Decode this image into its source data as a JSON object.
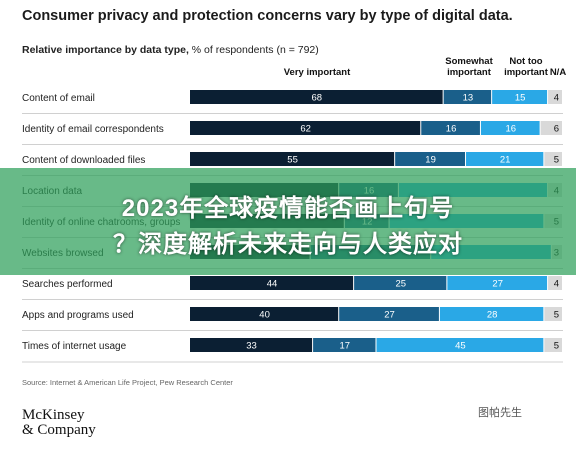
{
  "header": {
    "title": "Consumer privacy and protection concerns vary by type of digital data.",
    "subtitle_bold": "Relative importance by data type,",
    "subtitle_rest": " % of respondents (n = 792)"
  },
  "columns": {
    "very": "Very important",
    "somewhat": "Somewhat important",
    "not_too": "Not too important",
    "na": "N/A"
  },
  "chart_data": {
    "type": "bar",
    "stacked": true,
    "orientation": "horizontal",
    "title": "Consumer privacy and protection concerns vary by type of digital data.",
    "categories": [
      "Content of email",
      "Identity of email correspondents",
      "Content of downloaded files",
      "Location data",
      "Identity of online chatrooms, groups",
      "Websites browsed",
      "Searches performed",
      "Apps and programs used",
      "Times of internet usage"
    ],
    "series": [
      {
        "name": "Very important",
        "color": "#0b1f33",
        "values": [
          68,
          62,
          55,
          null,
          null,
          null,
          44,
          40,
          33
        ]
      },
      {
        "name": "Somewhat important",
        "color": "#1a5f8a",
        "values": [
          13,
          16,
          19,
          16,
          12,
          null,
          25,
          27,
          17
        ]
      },
      {
        "name": "Not too important",
        "color": "#2aa8e6",
        "values": [
          15,
          16,
          21,
          null,
          null,
          null,
          27,
          28,
          45
        ]
      },
      {
        "name": "N/A",
        "color": "#d9d9d9",
        "values": [
          4,
          6,
          5,
          4,
          5,
          3,
          4,
          5,
          5
        ]
      }
    ],
    "xlim": [
      0,
      100
    ]
  },
  "source": "Source: Internet & American Life Project, Pew Research Center",
  "logo": {
    "line1": "McKinsey",
    "line2": "& Company"
  },
  "overlay": {
    "line1": "2023年全球疫情能否画上句号",
    "line2": "？深度解析未来走向与人类应对"
  },
  "watermark": "图帕先生"
}
